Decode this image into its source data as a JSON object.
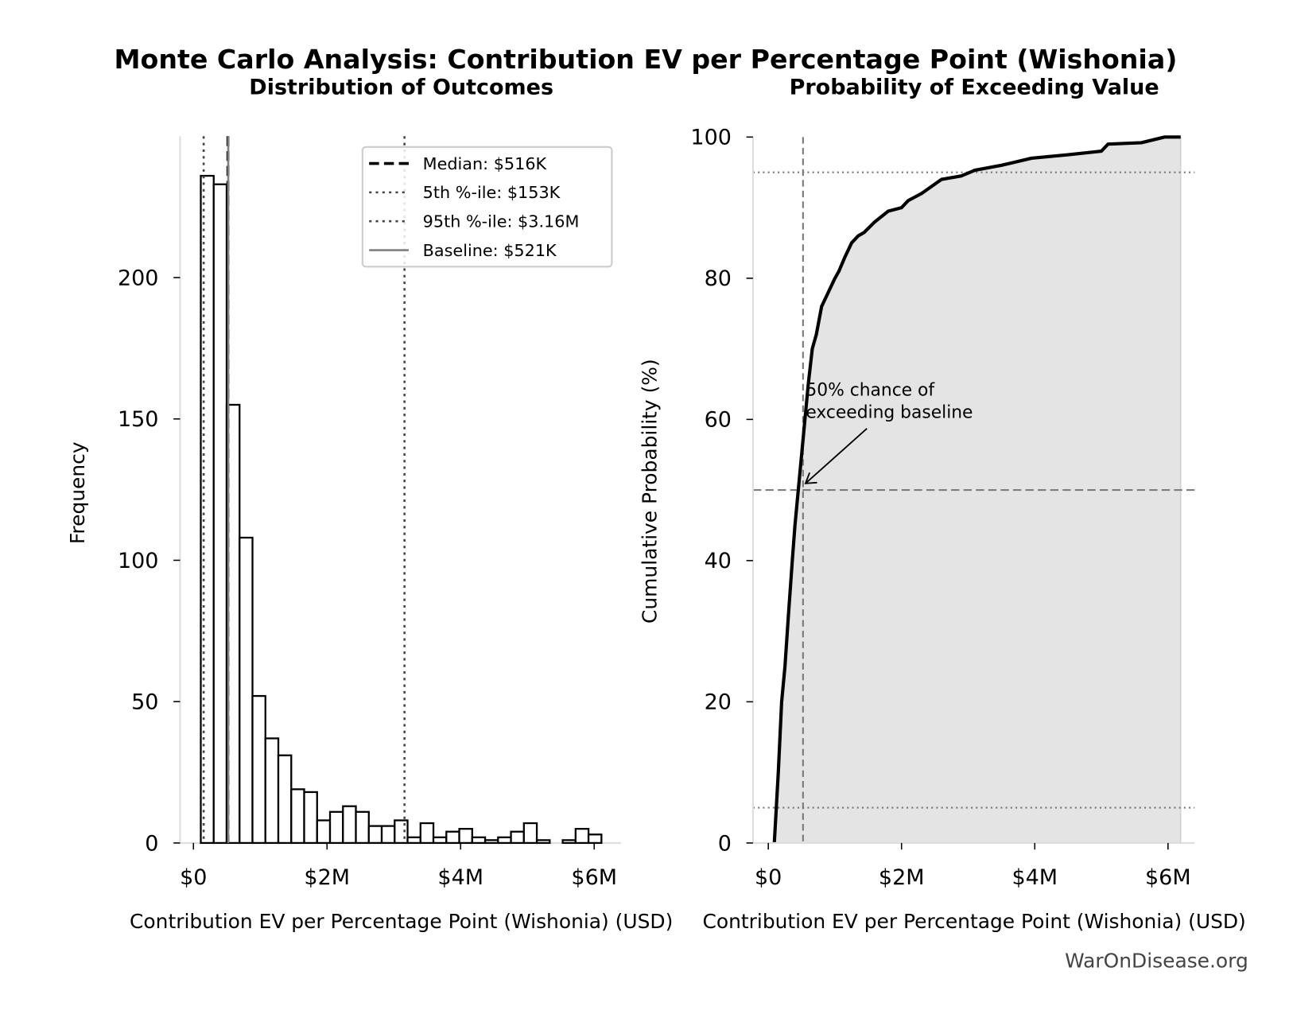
{
  "title": "Monte Carlo Analysis: Contribution EV per Percentage Point (Wishonia)",
  "watermark": "WarOnDisease.org",
  "chart_data": [
    {
      "type": "bar",
      "title": "Distribution of Outcomes",
      "xlabel": "Contribution EV per Percentage Point (Wishonia) (USD)",
      "ylabel": "Frequency",
      "bin_start_musd": 0.11,
      "bin_width_musd": 0.1935,
      "values": [
        236,
        233,
        155,
        108,
        52,
        37,
        31,
        19,
        18,
        8,
        11,
        13,
        11,
        6,
        6,
        8,
        2,
        7,
        2,
        4,
        5,
        2,
        1,
        2,
        4,
        7,
        1,
        0,
        1,
        5,
        3
      ],
      "xlim_musd": [
        -0.2,
        6.4
      ],
      "ylim": [
        0,
        250
      ],
      "xticks": [
        {
          "v": 0,
          "label": "$0"
        },
        {
          "v": 2,
          "label": "$2M"
        },
        {
          "v": 4,
          "label": "$4M"
        },
        {
          "v": 6,
          "label": "$6M"
        }
      ],
      "yticks": [
        {
          "v": 0,
          "label": "0"
        },
        {
          "v": 50,
          "label": "50"
        },
        {
          "v": 100,
          "label": "100"
        },
        {
          "v": 150,
          "label": "150"
        },
        {
          "v": 200,
          "label": "200"
        }
      ],
      "reference_lines": [
        {
          "label": "Median: $516K",
          "x_musd": 0.516,
          "style": "dashed",
          "color": "#000000"
        },
        {
          "label": "5th %-ile: $153K",
          "x_musd": 0.153,
          "style": "dotted",
          "color": "#444444"
        },
        {
          "label": "95th %-ile: $3.16M",
          "x_musd": 3.16,
          "style": "dotted",
          "color": "#444444"
        },
        {
          "label": "Baseline: $521K",
          "x_musd": 0.521,
          "style": "solid",
          "color": "#808080"
        }
      ],
      "legend_position": "top-right",
      "grid": false
    },
    {
      "type": "area",
      "title": "Probability of Exceeding Value",
      "xlabel": "Contribution EV per Percentage Point (Wishonia) (USD)",
      "ylabel": "Cumulative Probability (%)",
      "x_musd": [
        0.09,
        0.12,
        0.15,
        0.2,
        0.25,
        0.3,
        0.36,
        0.4,
        0.45,
        0.5,
        0.55,
        0.6,
        0.66,
        0.72,
        0.8,
        0.9,
        1.0,
        1.06,
        1.15,
        1.25,
        1.35,
        1.44,
        1.6,
        1.8,
        2.0,
        2.1,
        2.3,
        2.6,
        2.9,
        3.1,
        3.5,
        3.95,
        4.5,
        5.0,
        5.1,
        5.6,
        5.95,
        6.19
      ],
      "y_pct": [
        0,
        5,
        10,
        20,
        25,
        32,
        40,
        45,
        50,
        55,
        60,
        65,
        70,
        72,
        76,
        78,
        80,
        81,
        83,
        85,
        86,
        86.5,
        88,
        89.5,
        90,
        91,
        92,
        94,
        94.5,
        95.3,
        96,
        97,
        97.5,
        98,
        99,
        99.2,
        100,
        100
      ],
      "xlim_musd": [
        -0.23,
        6.4
      ],
      "ylim": [
        0,
        100
      ],
      "xticks": [
        {
          "v": 0,
          "label": "$0"
        },
        {
          "v": 2,
          "label": "$2M"
        },
        {
          "v": 4,
          "label": "$4M"
        },
        {
          "v": 6,
          "label": "$6M"
        }
      ],
      "yticks": [
        {
          "v": 0,
          "label": "0"
        },
        {
          "v": 20,
          "label": "20"
        },
        {
          "v": 40,
          "label": "40"
        },
        {
          "v": 60,
          "label": "60"
        },
        {
          "v": 80,
          "label": "80"
        },
        {
          "v": 100,
          "label": "100"
        }
      ],
      "hlines_pct": [
        {
          "y": 5,
          "style": "dotted"
        },
        {
          "y": 50,
          "style": "dashed"
        },
        {
          "y": 95,
          "style": "dotted"
        }
      ],
      "vline_musd": {
        "x": 0.521,
        "style": "dashed"
      },
      "annotation": {
        "lines": [
          "50% chance of",
          "exceeding baseline"
        ],
        "point_musd": 0.521,
        "point_pct": 50
      },
      "fill_color": "#e4e4e4",
      "line_color": "#000000",
      "grid": false
    }
  ]
}
